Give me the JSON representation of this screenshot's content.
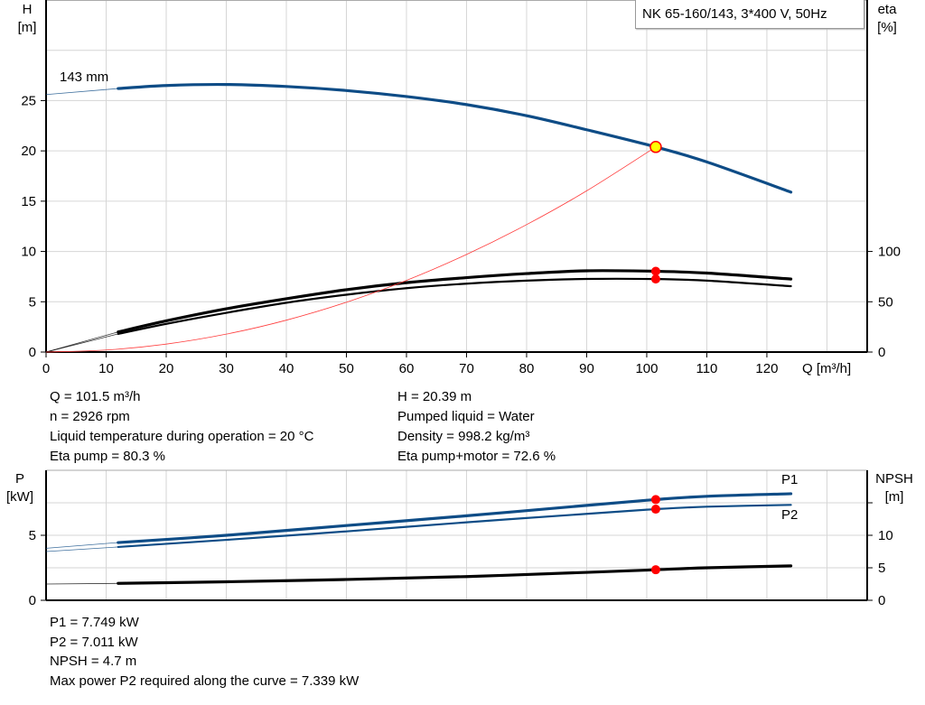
{
  "title": "NK 65-160/143, 3*400 V, 50Hz",
  "colors": {
    "head": "#0e4c86",
    "efficiency": "#000000",
    "system": "#ff3b3b",
    "point": "#ff0000",
    "duty_point_fill": "#ffff00",
    "grid": "#d6d6d6"
  },
  "chart_data": [
    {
      "type": "line",
      "name": "head-efficiency",
      "xlabel": "Q [m³/h]",
      "ylabel_left": [
        "H",
        "[m]"
      ],
      "ylabel_right": [
        "eta",
        "[%]"
      ],
      "xlim": [
        0,
        136.7
      ],
      "ylim_left": [
        0,
        35
      ],
      "ylim_right": [
        0,
        350
      ],
      "x_ticks": [
        0,
        10,
        20,
        30,
        40,
        50,
        60,
        70,
        80,
        90,
        100,
        110,
        120
      ],
      "y_ticks_left": [
        0,
        5,
        10,
        15,
        20,
        25
      ],
      "y_ticks_right": [
        0,
        50,
        100
      ],
      "grid": true,
      "curve_label": "143 mm",
      "series": [
        {
          "key": "H",
          "axis": "left",
          "color": "#0e4c86",
          "points": [
            [
              0,
              25.6
            ],
            [
              12,
              26.2
            ],
            [
              20,
              26.5
            ],
            [
              30,
              26.6
            ],
            [
              40,
              26.4
            ],
            [
              50,
              26.0
            ],
            [
              60,
              25.4
            ],
            [
              70,
              24.6
            ],
            [
              80,
              23.5
            ],
            [
              90,
              22.1
            ],
            [
              101.5,
              20.39
            ],
            [
              110,
              18.9
            ],
            [
              124,
              15.9
            ]
          ]
        },
        {
          "key": "eta_pump",
          "axis": "right",
          "color": "#000000",
          "points": [
            [
              0,
              0
            ],
            [
              12,
              20
            ],
            [
              20,
              31
            ],
            [
              30,
              43
            ],
            [
              40,
              53
            ],
            [
              50,
              62
            ],
            [
              60,
              69
            ],
            [
              70,
              74
            ],
            [
              80,
              78
            ],
            [
              90,
              80.8
            ],
            [
              101.5,
              80.3
            ],
            [
              110,
              78.5
            ],
            [
              124,
              72.6
            ]
          ]
        },
        {
          "key": "eta_pump_motor",
          "axis": "right",
          "color": "#000000",
          "points": [
            [
              0,
              0
            ],
            [
              12,
              18
            ],
            [
              20,
              28
            ],
            [
              30,
              39
            ],
            [
              40,
              49
            ],
            [
              50,
              57
            ],
            [
              60,
              63.5
            ],
            [
              70,
              68
            ],
            [
              80,
              71
            ],
            [
              90,
              72.7
            ],
            [
              101.5,
              72.6
            ],
            [
              110,
              71
            ],
            [
              124,
              65.5
            ]
          ]
        },
        {
          "key": "system",
          "axis": "left",
          "color": "#ff3b3b",
          "points": [
            [
              0,
              0
            ],
            [
              10,
              0.2
            ],
            [
              20,
              0.79
            ],
            [
              30,
              1.78
            ],
            [
              40,
              3.17
            ],
            [
              50,
              4.95
            ],
            [
              60,
              7.12
            ],
            [
              70,
              9.7
            ],
            [
              80,
              12.67
            ],
            [
              90,
              16.03
            ],
            [
              101.5,
              20.39
            ]
          ]
        }
      ],
      "duty_point": {
        "Q": 101.5,
        "H": 20.39,
        "eta_pump": 80.3,
        "eta_pump_motor": 72.6
      }
    },
    {
      "type": "line",
      "name": "power-npsh",
      "ylabel_left": [
        "P",
        "[kW]"
      ],
      "ylabel_right": [
        "NPSH",
        "[m]"
      ],
      "xlim": [
        0,
        136.7
      ],
      "ylim_left": [
        0,
        10
      ],
      "ylim_right": [
        0,
        20
      ],
      "x_ticks": [
        0,
        10,
        20,
        30,
        40,
        50,
        60,
        70,
        80,
        90,
        100,
        110,
        120
      ],
      "y_ticks_left": [
        0,
        5
      ],
      "y_ticks_right": [
        0,
        5,
        10,
        15
      ],
      "y_tick_labels_right": [
        "0",
        "5",
        "10",
        ""
      ],
      "grid": true,
      "series": [
        {
          "key": "P1",
          "name": "P1",
          "axis": "left",
          "color": "#0e4c86",
          "points": [
            [
              0,
              4.0
            ],
            [
              12,
              4.44
            ],
            [
              30,
              5.0
            ],
            [
              50,
              5.75
            ],
            [
              70,
              6.5
            ],
            [
              90,
              7.3
            ],
            [
              101.5,
              7.749
            ],
            [
              110,
              8.0
            ],
            [
              124,
              8.2
            ]
          ]
        },
        {
          "key": "P2",
          "name": "P2",
          "axis": "left",
          "color": "#0e4c86",
          "points": [
            [
              0,
              3.75
            ],
            [
              12,
              4.1
            ],
            [
              30,
              4.65
            ],
            [
              50,
              5.3
            ],
            [
              70,
              6.0
            ],
            [
              90,
              6.65
            ],
            [
              101.5,
              7.011
            ],
            [
              110,
              7.2
            ],
            [
              124,
              7.339
            ]
          ]
        },
        {
          "key": "NPSH",
          "axis": "right",
          "color": "#000000",
          "points": [
            [
              0,
              2.5
            ],
            [
              12,
              2.6
            ],
            [
              30,
              2.85
            ],
            [
              50,
              3.2
            ],
            [
              70,
              3.65
            ],
            [
              90,
              4.3
            ],
            [
              101.5,
              4.7
            ],
            [
              110,
              5.0
            ],
            [
              124,
              5.3
            ]
          ]
        }
      ],
      "duty_point": {
        "Q": 101.5,
        "P1": 7.749,
        "P2": 7.011,
        "NPSH": 4.7
      }
    }
  ],
  "info_top": {
    "left": [
      "Q = 101.5 m³/h",
      "n = 2926 rpm",
      "Liquid temperature during operation = 20 °C",
      "Eta pump = 80.3 %"
    ],
    "right": [
      "H = 20.39 m",
      "Pumped liquid = Water",
      "Density = 998.2 kg/m³",
      "Eta pump+motor = 72.6 %"
    ]
  },
  "info_bottom": [
    "P1 = 7.749 kW",
    "P2 = 7.011 kW",
    "NPSH = 4.7 m",
    "Max power P2 required along the curve = 7.339 kW"
  ]
}
